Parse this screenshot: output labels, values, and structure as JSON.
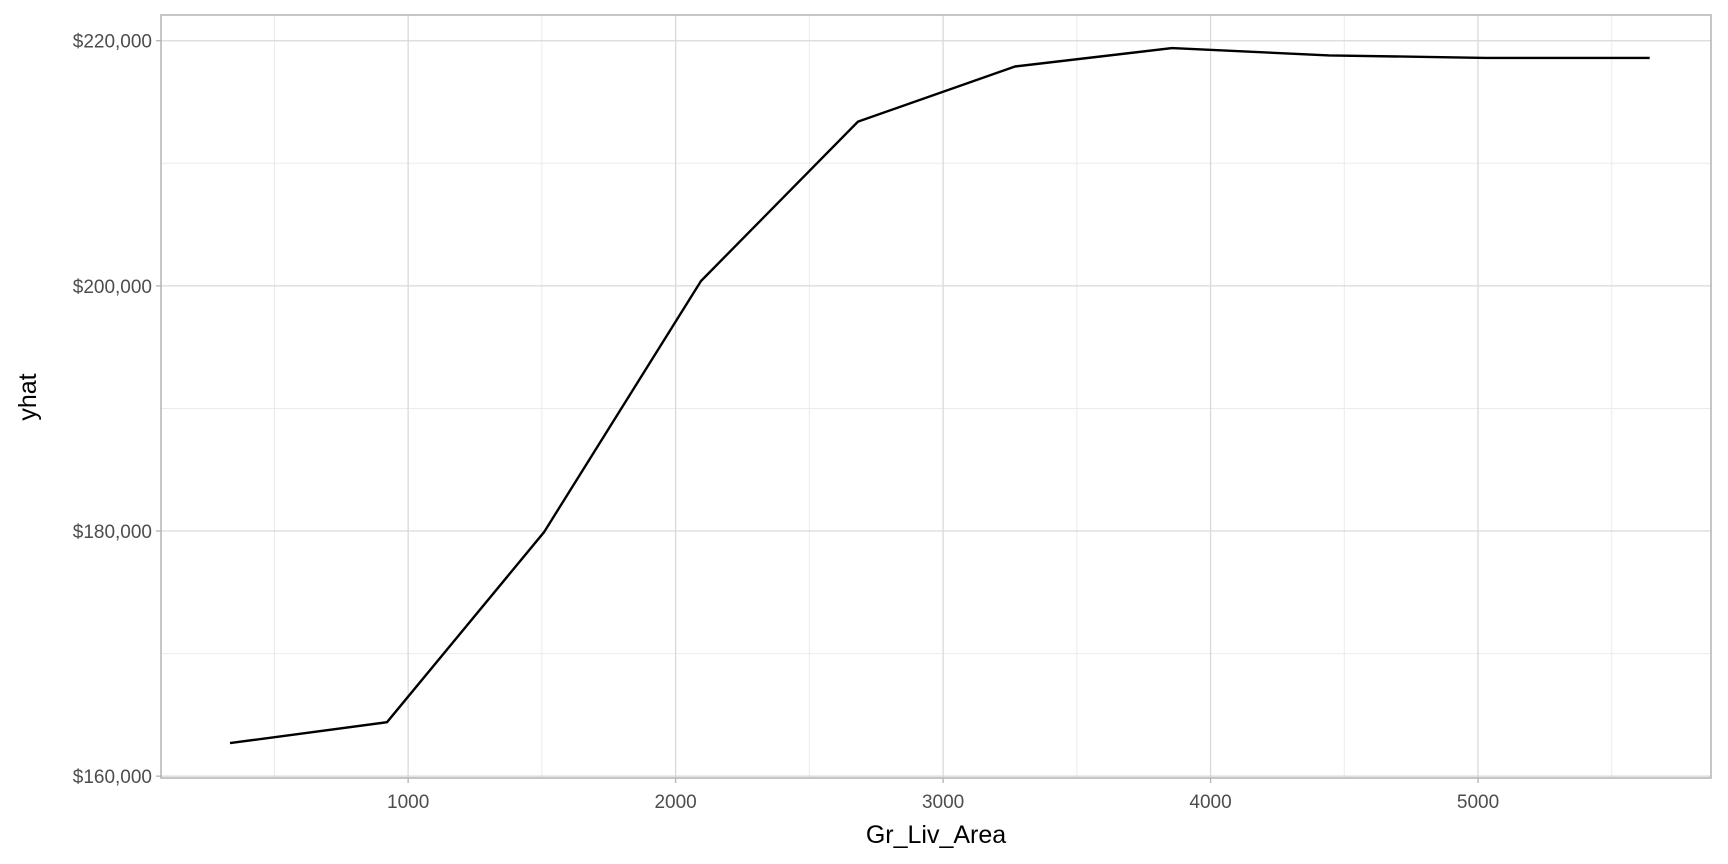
{
  "chart_data": {
    "type": "line",
    "title": "",
    "xlabel": "Gr_Liv_Area",
    "ylabel": "yhat",
    "xlim": [
      76,
      5871
    ],
    "ylim": [
      159850,
      222100
    ],
    "x_ticks": [
      1000,
      2000,
      3000,
      4000,
      5000
    ],
    "x_tick_labels": [
      "1000",
      "2000",
      "3000",
      "4000",
      "5000"
    ],
    "x_minor_ticks": [
      500,
      1500,
      2500,
      3500,
      4500,
      5500
    ],
    "y_ticks": [
      160000,
      180000,
      200000,
      220000
    ],
    "y_tick_labels": [
      "$160,000",
      "$180,000",
      "$200,000",
      "$220,000"
    ],
    "y_minor_ticks": [
      170000,
      190000,
      210000
    ],
    "grid": true,
    "series": [
      {
        "color": "#000000",
        "x": [
          334,
          921,
          1508,
          2095,
          2682,
          3269,
          3856,
          4443,
          5030,
          5642
        ],
        "y": [
          162700,
          164400,
          179900,
          200400,
          213400,
          217900,
          219400,
          218800,
          218600,
          218600
        ]
      }
    ]
  }
}
